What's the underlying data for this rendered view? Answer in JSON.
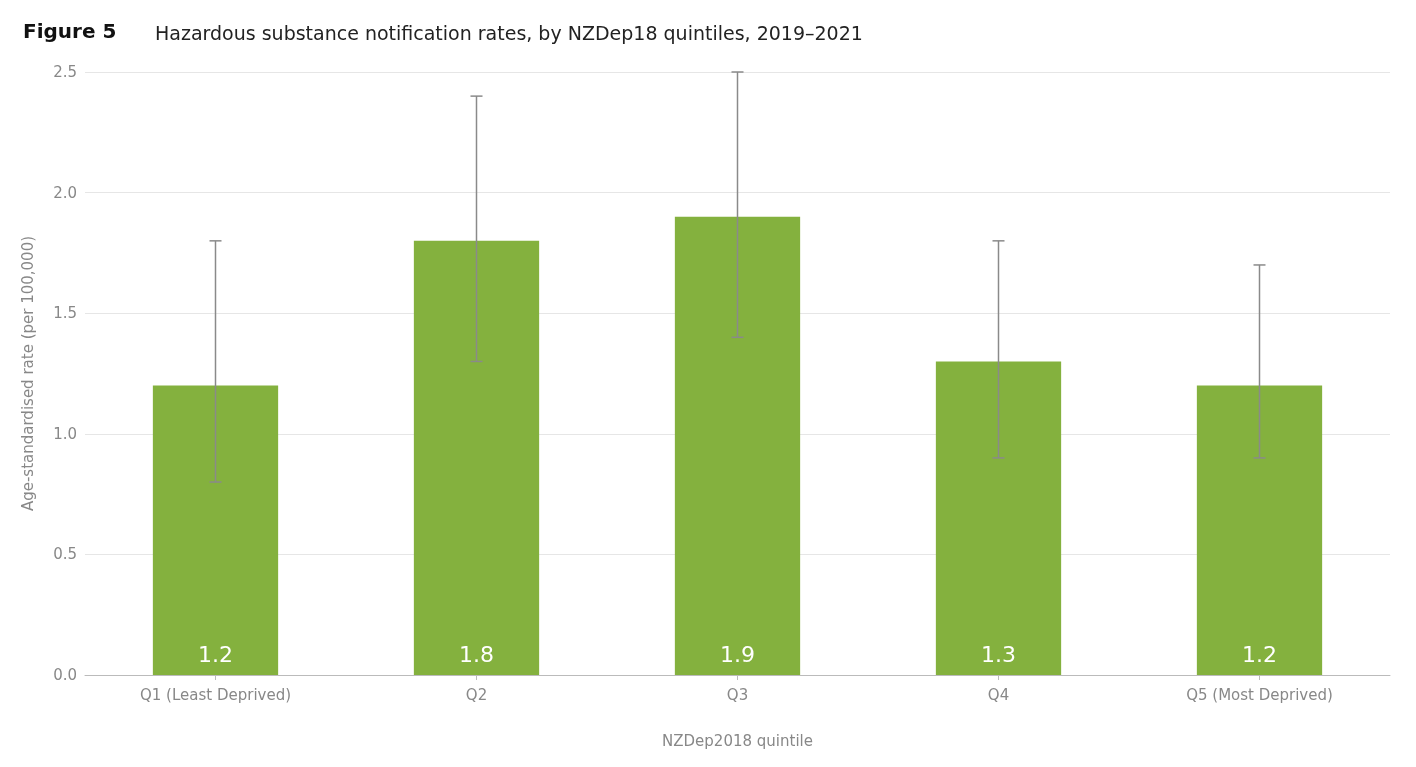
{
  "chart_data": {
    "type": "bar",
    "title": "Figure 5",
    "subtitle": "Hazardous substance notification rates, by NZDep18 quintiles, 2019–2021",
    "xlabel": "NZDep2018 quintile",
    "ylabel": "Age-standardised rate (per 100,000)",
    "categories": [
      "Q1 (Least Deprived)",
      "Q2",
      "Q3",
      "Q4",
      "Q5 (Most Deprived)"
    ],
    "values": [
      1.2,
      1.8,
      1.9,
      1.3,
      1.2
    ],
    "color": "#84b13e",
    "errors": [
      [
        0.8,
        1.8
      ],
      [
        1.3,
        2.4
      ],
      [
        1.4,
        2.5
      ],
      [
        0.9,
        1.8
      ],
      [
        0.9,
        1.7
      ]
    ],
    "ylim": [
      0,
      2.5
    ],
    "yticks": [
      {
        "value": 0,
        "label": "0.0"
      },
      0.5,
      {
        "value": 1,
        "label": "1.0"
      },
      1.5,
      {
        "value": 2,
        "label": "2.0"
      },
      2.5
    ],
    "grid": "y",
    "data_labels": true
  }
}
